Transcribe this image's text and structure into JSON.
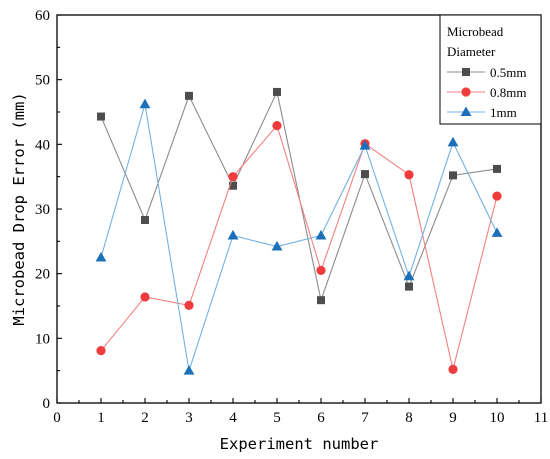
{
  "chart_data": {
    "type": "line",
    "xlabel": "Experiment number",
    "ylabel": "Microbead Drop Error (mm)",
    "xlim": [
      0,
      11
    ],
    "ylim": [
      0,
      60
    ],
    "xticks": [
      "0",
      "1",
      "2",
      "3",
      "4",
      "5",
      "6",
      "7",
      "8",
      "9",
      "10",
      "11"
    ],
    "yticks": [
      "0",
      "10",
      "20",
      "30",
      "40",
      "50",
      "60"
    ],
    "grid": false,
    "legend_title": [
      "Microbead",
      "Diameter"
    ],
    "legend_position": "top-right",
    "x": [
      1,
      2,
      3,
      4,
      5,
      6,
      7,
      8,
      9,
      10
    ],
    "series": [
      {
        "name": "0.5mm",
        "values": [
          44.3,
          28.3,
          47.5,
          33.6,
          48.1,
          15.9,
          35.4,
          18.0,
          35.2,
          36.2
        ],
        "marker": "square",
        "color": "#4d4d4d",
        "line_color": "#8c8c8c"
      },
      {
        "name": "0.8mm",
        "values": [
          8.1,
          16.4,
          15.1,
          35.0,
          42.9,
          20.5,
          40.1,
          35.3,
          5.2,
          32.0
        ],
        "marker": "circle",
        "color": "#f03c3c",
        "line_color": "#f28080"
      },
      {
        "name": "1mm",
        "values": [
          22.5,
          46.2,
          5.0,
          25.9,
          24.2,
          25.9,
          39.8,
          19.6,
          40.3,
          26.3
        ],
        "marker": "triangle",
        "color": "#1c6fb8",
        "line_color": "#74b2e2"
      }
    ]
  }
}
